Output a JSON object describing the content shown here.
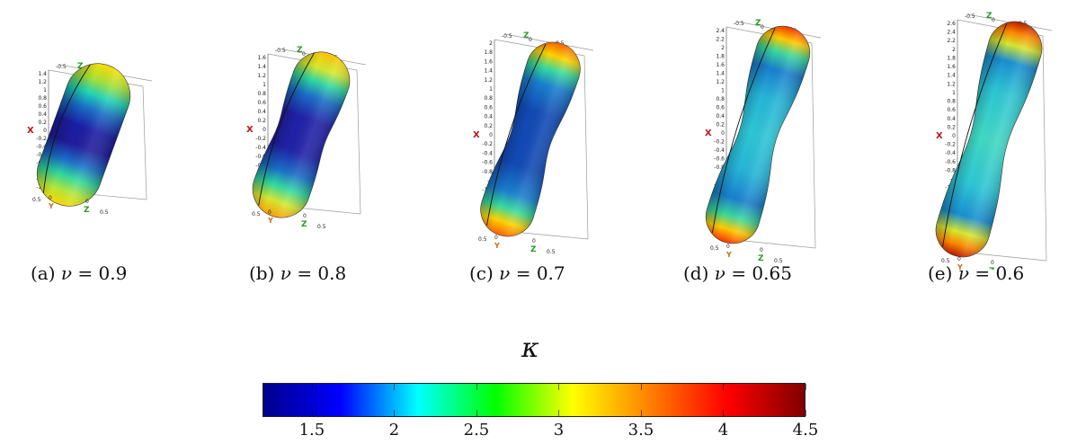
{
  "panels": [
    {
      "id": "a",
      "caption_prefix": "(a)",
      "nu_symbol": "ν",
      "caption_value": "= 0.9",
      "x_ticks": [
        "1.4",
        "1.2",
        "1",
        "0.8",
        "0.6",
        "0.4",
        "0.2",
        "0",
        "-0.2",
        "-0.4",
        "-0.6",
        "-0.8",
        "-1",
        "-1.2",
        "-1.4"
      ],
      "top_ticks": [
        "-0.5",
        "0",
        "0.5"
      ]
    },
    {
      "id": "b",
      "caption_prefix": "(b)",
      "nu_symbol": "ν",
      "caption_value": "= 0.8",
      "x_ticks": [
        "1.6",
        "1.4",
        "1.2",
        "1",
        "0.8",
        "0.6",
        "0.4",
        "0.2",
        "0",
        "-0.2",
        "-0.4",
        "-0.6",
        "-0.8",
        "-1",
        "-1.2",
        "-1.4",
        "-1.6"
      ],
      "top_ticks": [
        "-0.5",
        "0",
        "0.5"
      ]
    },
    {
      "id": "c",
      "caption_prefix": "(c)",
      "nu_symbol": "ν",
      "caption_value": "= 0.7",
      "x_ticks": [
        "2",
        "1.8",
        "1.6",
        "1.4",
        "1.2",
        "1",
        "0.8",
        "0.6",
        "0.4",
        "0.2",
        "0",
        "-0.2",
        "-0.4",
        "-0.6",
        "-0.8",
        "-1",
        "-1.2",
        "-1.4",
        "-1.6",
        "-1.8",
        "-2"
      ],
      "top_ticks": [
        "-0.5",
        "0",
        "0.5"
      ]
    },
    {
      "id": "d",
      "caption_prefix": "(d)",
      "nu_symbol": "ν",
      "caption_value": "= 0.65",
      "x_ticks": [
        "2.4",
        "2.2",
        "2",
        "1.8",
        "1.6",
        "1.4",
        "1.2",
        "1",
        "0.8",
        "0.6",
        "0.4",
        "0.2",
        "0",
        "-0.2",
        "-0.4",
        "-0.6",
        "-0.8",
        "-1",
        "-1.2",
        "-1.4",
        "-1.6",
        "-1.8",
        "-2",
        "-2.2",
        "-2.4"
      ],
      "top_ticks": [
        "-0.5",
        "0",
        "0.5"
      ]
    },
    {
      "id": "e",
      "caption_prefix": "(e)",
      "nu_symbol": "ν",
      "caption_value": "= 0.6",
      "x_ticks": [
        "2.6",
        "2.4",
        "2.2",
        "2",
        "1.8",
        "1.6",
        "1.4",
        "1.2",
        "1",
        "0.8",
        "0.6",
        "0.4",
        "0.2",
        "0",
        "-0.2",
        "-0.4",
        "-0.6",
        "-0.8",
        "-1",
        "-1.2",
        "-1.4",
        "-1.6",
        "-1.8",
        "-2",
        "-2.2",
        "-2.4",
        "-2.6"
      ],
      "top_ticks": [
        "-0.5",
        "0",
        "0.5"
      ]
    }
  ],
  "axis_labels": {
    "x": "X",
    "y": "Y",
    "z": "Z",
    "z_zero": "0",
    "bottom_left": "0.5",
    "bottom_zero": "0",
    "bottom_right": "0.5"
  },
  "colorbar": {
    "label": "κ",
    "min": 1.2,
    "max": 4.5,
    "ticks": [
      {
        "value": 1.5,
        "label": "1.5"
      },
      {
        "value": 2,
        "label": "2"
      },
      {
        "value": 2.5,
        "label": "2.5"
      },
      {
        "value": 3,
        "label": "3"
      },
      {
        "value": 3.5,
        "label": "3.5"
      },
      {
        "value": 4,
        "label": "4"
      },
      {
        "value": 4.5,
        "label": "4.5"
      }
    ],
    "colors": [
      "#00008b",
      "#0000ff",
      "#00ffff",
      "#00ff00",
      "#ffff00",
      "#ff8000",
      "#ff0000",
      "#800000"
    ]
  }
}
